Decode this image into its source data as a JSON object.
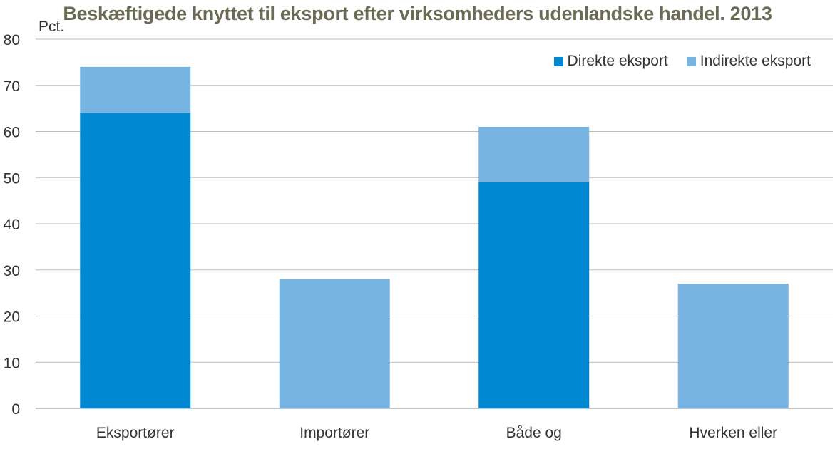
{
  "chart_data": {
    "type": "bar",
    "stacked": true,
    "title": "Beskæftigede knyttet til eksport efter virksomheders udenlandske handel. 2013",
    "ylabel": "Pct.",
    "xlabel": "",
    "ylim": [
      0,
      80
    ],
    "yticks": [
      0,
      10,
      20,
      30,
      40,
      50,
      60,
      70,
      80
    ],
    "grid": true,
    "legend_position": "top-right",
    "categories": [
      "Eksportører",
      "Importører",
      "Både og",
      "Hverken eller"
    ],
    "series": [
      {
        "name": "Direkte eksport",
        "color": "#0089d2",
        "values": [
          64,
          0,
          49,
          0
        ]
      },
      {
        "name": "Indirekte eksport",
        "color": "#78b4e2",
        "values": [
          10,
          28,
          12,
          27
        ]
      }
    ]
  }
}
